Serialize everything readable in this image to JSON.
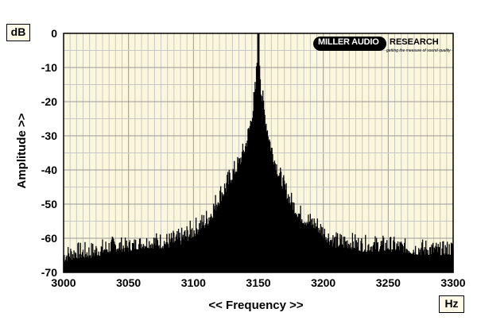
{
  "chart_data": {
    "type": "area",
    "title": "",
    "xlabel": "<< Frequency >>",
    "ylabel": "Amplitude >>",
    "x_unit": "Hz",
    "y_unit": "dB",
    "xlim": [
      3000,
      3300
    ],
    "ylim": [
      -70,
      0
    ],
    "x_ticks": [
      3000,
      3050,
      3100,
      3150,
      3200,
      3250,
      3300
    ],
    "y_ticks": [
      0,
      -10,
      -20,
      -30,
      -40,
      -50,
      -60,
      -70
    ],
    "grid": true,
    "series": [
      {
        "x": [
          3000,
          3010,
          3020,
          3030,
          3040,
          3050,
          3060,
          3070,
          3080,
          3090,
          3100,
          3105,
          3110,
          3115,
          3120,
          3125,
          3130,
          3135,
          3140,
          3143,
          3146,
          3148,
          3149,
          3150,
          3151,
          3152,
          3154,
          3157,
          3160,
          3165,
          3170,
          3175,
          3180,
          3185,
          3190,
          3195,
          3200,
          3205,
          3210,
          3220,
          3230,
          3240,
          3250,
          3260,
          3270,
          3280,
          3290,
          3300
        ],
        "values": [
          -67,
          -66,
          -66,
          -65,
          -64,
          -64,
          -63,
          -63,
          -63,
          -62,
          -60,
          -58,
          -57,
          -54,
          -50,
          -47,
          -43,
          -40,
          -35,
          -30,
          -24,
          -18,
          -10,
          0,
          -10,
          -18,
          -24,
          -30,
          -36,
          -42,
          -47,
          -51,
          -54,
          -56,
          -57,
          -58,
          -60,
          -62,
          -63,
          -63,
          -64,
          -64,
          -64,
          -64,
          -65,
          -65,
          -65,
          -65
        ],
        "peak_values": [
          -62,
          -61,
          -61,
          -60,
          -59,
          -60,
          -59,
          -58,
          -58,
          -57,
          -54,
          -53,
          -51,
          -48,
          -44,
          -41,
          -38,
          -35,
          -30,
          -25,
          -18,
          -12,
          -5,
          0,
          -5,
          -12,
          -18,
          -25,
          -30,
          -37,
          -42,
          -46,
          -49,
          -51,
          -52,
          -53,
          -55,
          -57,
          -58,
          -58,
          -59,
          -59,
          -59,
          -60,
          -60,
          -60,
          -61,
          -60
        ]
      }
    ]
  },
  "logo": {
    "brand": "MILLER AUDIO",
    "brand2": "RESEARCH",
    "tagline": "getting the measure of sound quality"
  }
}
